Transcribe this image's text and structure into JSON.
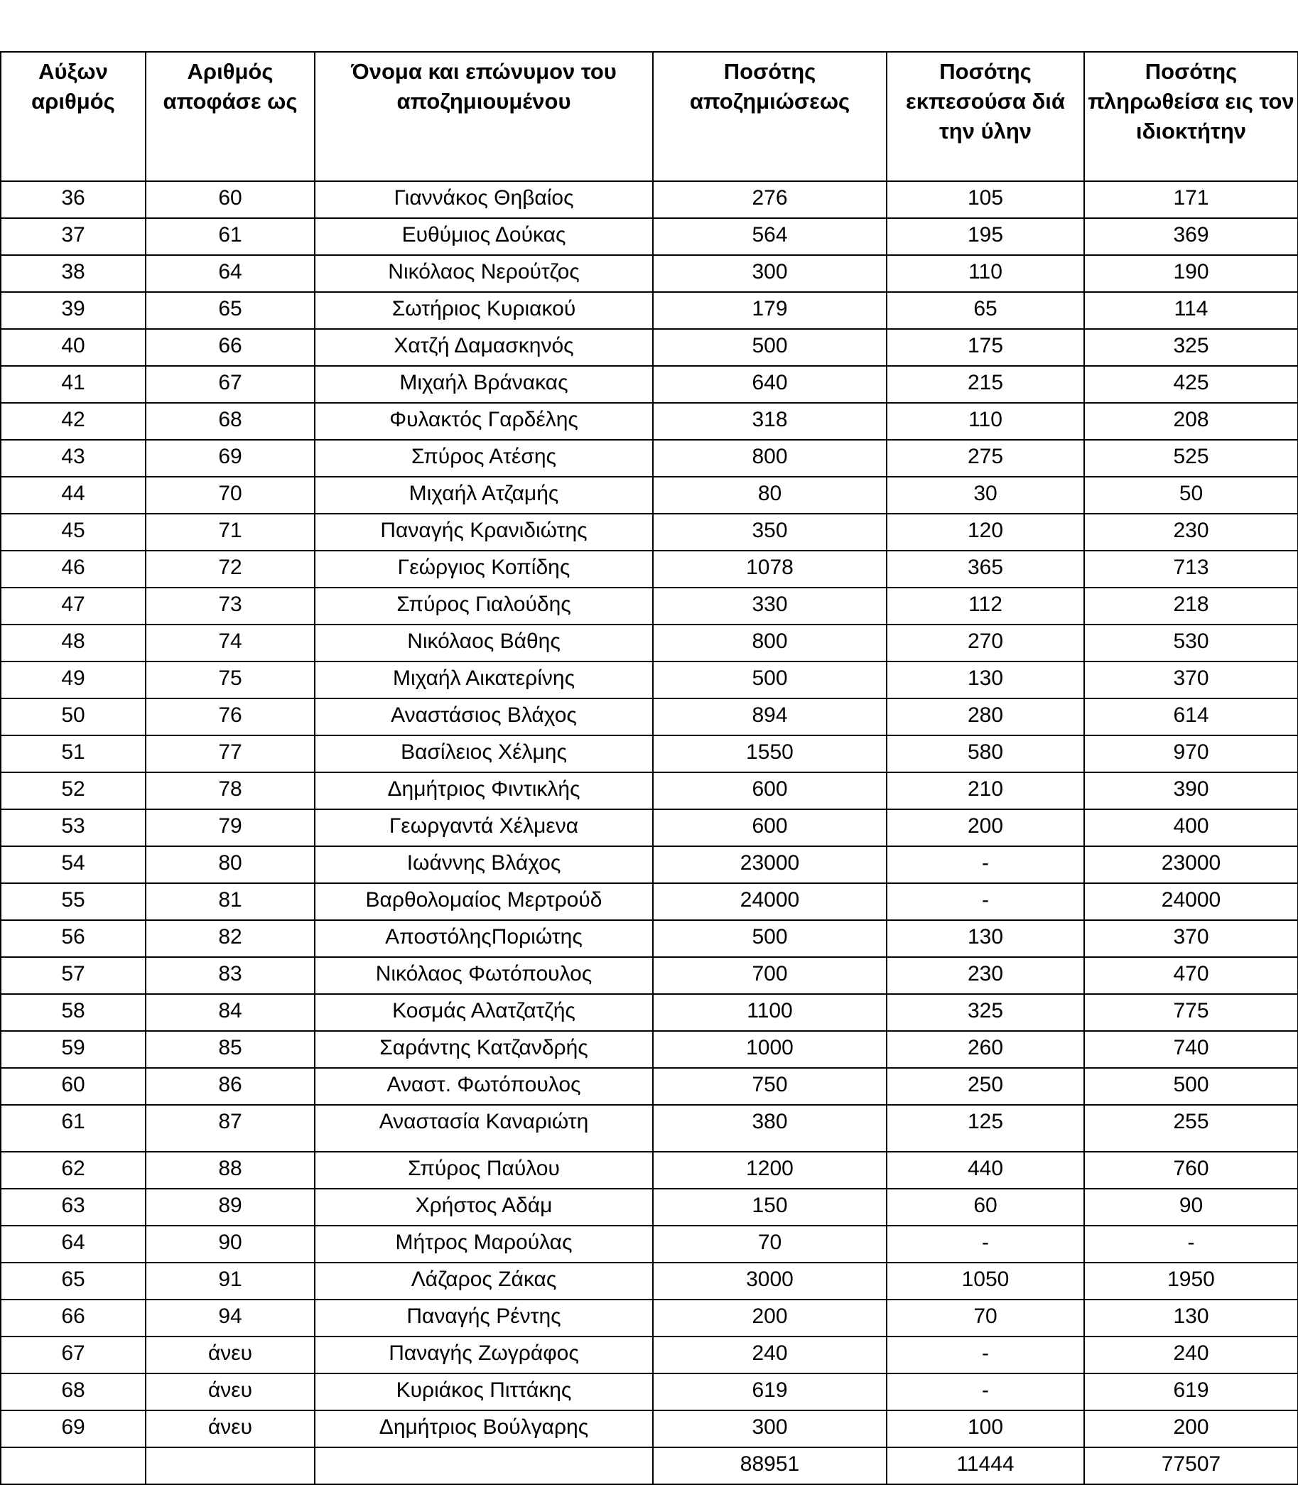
{
  "table": {
    "headers": [
      "Αύξων αριθμός",
      "Αριθμός αποφάσε ως",
      "Όνομα και επώνυμον του αποζημιουμένου",
      "Ποσότης αποζημιώσεως",
      "Ποσότης εκπεσούσα διά την ύλην",
      "Ποσότης πληρωθείσα εις τον ιδιοκτήτην"
    ],
    "rows": [
      [
        "36",
        "60",
        "Γιαννάκος Θηβαίος",
        "276",
        "105",
        "171"
      ],
      [
        "37",
        "61",
        "Ευθύμιος Δούκας",
        "564",
        "195",
        "369"
      ],
      [
        "38",
        "64",
        "Νικόλαος Νερούτζος",
        "300",
        "110",
        "190"
      ],
      [
        "39",
        "65",
        "Σωτήριος Κυριακού",
        "179",
        "65",
        "114"
      ],
      [
        "40",
        "66",
        "Χατζή Δαμασκηνός",
        "500",
        "175",
        "325"
      ],
      [
        "41",
        "67",
        "Μιχαήλ Βράνακας",
        "640",
        "215",
        "425"
      ],
      [
        "42",
        "68",
        "Φυλακτός Γαρδέλης",
        "318",
        "110",
        "208"
      ],
      [
        "43",
        "69",
        "Σπύρος Ατέσης",
        "800",
        "275",
        "525"
      ],
      [
        "44",
        "70",
        "Μιχαήλ Ατζαμής",
        "80",
        "30",
        "50"
      ],
      [
        "45",
        "71",
        "Παναγής Κρανιδιώτης",
        "350",
        "120",
        "230"
      ],
      [
        "46",
        "72",
        "Γεώργιος Κοπίδης",
        "1078",
        "365",
        "713"
      ],
      [
        "47",
        "73",
        "Σπύρος Γιαλούδης",
        "330",
        "112",
        "218"
      ],
      [
        "48",
        "74",
        "Νικόλαος Βάθης",
        "800",
        "270",
        "530"
      ],
      [
        "49",
        "75",
        "Μιχαήλ Αικατερίνης",
        "500",
        "130",
        "370"
      ],
      [
        "50",
        "76",
        "Αναστάσιος Βλάχος",
        "894",
        "280",
        "614"
      ],
      [
        "51",
        "77",
        "Βασίλειος Χέλμης",
        "1550",
        "580",
        "970"
      ],
      [
        "52",
        "78",
        "Δημήτριος Φιντικλής",
        "600",
        "210",
        "390"
      ],
      [
        "53",
        "79",
        "Γεωργαντά Χέλμενα",
        "600",
        "200",
        "400"
      ],
      [
        "54",
        "80",
        "Ιωάννης Βλάχος",
        "23000",
        "-",
        "23000"
      ],
      [
        "55",
        "81",
        "Βαρθολομαίος Μερτρούδ",
        "24000",
        "-",
        "24000"
      ],
      [
        "56",
        "82",
        "ΑποστόληςΠοριώτης",
        "500",
        "130",
        "370"
      ],
      [
        "57",
        "83",
        "Νικόλαος Φωτόπουλος",
        "700",
        "230",
        "470"
      ],
      [
        "58",
        "84",
        "Κοσμάς Αλατζατζής",
        "1100",
        "325",
        "775"
      ],
      [
        "59",
        "85",
        "Σαράντης Κατζανδρής",
        "1000",
        "260",
        "740"
      ],
      [
        "60",
        "86",
        "Αναστ. Φωτόπουλος",
        "750",
        "250",
        "500"
      ],
      [
        "61",
        "87",
        "Αναστασία Καναριώτη",
        "380",
        "125",
        "255"
      ],
      [
        "62",
        "88",
        "Σπύρος Παύλου",
        "1200",
        "440",
        "760"
      ],
      [
        "63",
        "89",
        "Χρήστος Αδάμ",
        "150",
        "60",
        "90"
      ],
      [
        "64",
        "90",
        "Μήτρος Μαρούλας",
        "70",
        "-",
        "-"
      ],
      [
        "65",
        "91",
        "Λάζαρος Ζάκας",
        "3000",
        "1050",
        "1950"
      ],
      [
        "66",
        "94",
        "Παναγής Ρέντης",
        "200",
        "70",
        "130"
      ],
      [
        "67",
        "άνευ",
        "Παναγής Ζωγράφος",
        "240",
        "-",
        "240"
      ],
      [
        "68",
        "άνευ",
        "Κυριάκος Πιττάκης",
        "619",
        "-",
        "619"
      ],
      [
        "69",
        "άνευ",
        "Δημήτριος Βούλγαρης",
        "300",
        "100",
        "200"
      ]
    ],
    "totals": [
      "",
      "",
      "",
      "88951",
      "11444",
      "77507"
    ]
  }
}
